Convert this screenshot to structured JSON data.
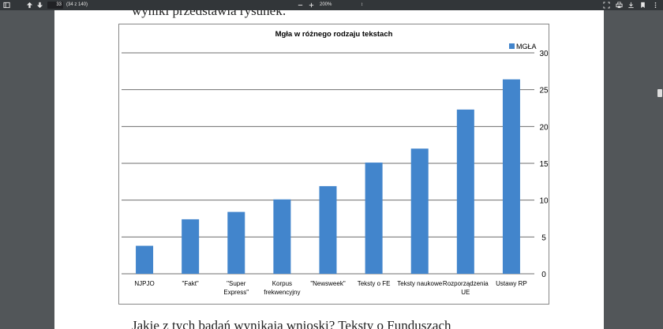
{
  "toolbar": {
    "page_current": "33",
    "page_info": "(34 z 140)",
    "zoom": "200%",
    "zoom_dropdown": "↕"
  },
  "document": {
    "top_text": "wyniki przedstawia rysunek:",
    "bottom_text": "Jakie z tych badań wynikają wnioski? Teksty o Funduszach"
  },
  "colors": {
    "bar": "#4285cc",
    "grid": "#6f6f6f"
  },
  "chart_data": {
    "type": "bar",
    "title": "Mgła w różnego rodzaju tekstach",
    "categories": [
      "NJPJO",
      "\"Fakt\"",
      "\"Super Express\"",
      "Korpus frekwencyjny",
      "\"Newsweek\"",
      "Teksty o FE",
      "Teksty naukowe",
      "Rozporządzenia UE",
      "Ustawy RP"
    ],
    "category_lines": [
      [
        "NJPJO"
      ],
      [
        "\"Fakt\""
      ],
      [
        "\"Super",
        "Express\""
      ],
      [
        "Korpus",
        "frekwencyjny"
      ],
      [
        "\"Newsweek\""
      ],
      [
        "Teksty o FE"
      ],
      [
        "Teksty naukowe"
      ],
      [
        "Rozporządzenia",
        "UE"
      ],
      [
        "Ustawy RP"
      ]
    ],
    "series": [
      {
        "name": "MGŁA",
        "values": [
          3.8,
          7.4,
          8.4,
          10.1,
          11.9,
          15.1,
          17.0,
          22.3,
          26.4
        ]
      }
    ],
    "ylim": [
      0,
      30
    ],
    "yticks": [
      "0",
      "5",
      "10",
      "15",
      "20",
      "25",
      "30"
    ],
    "ytick_values": [
      0,
      5,
      10,
      15,
      20,
      25,
      30
    ],
    "y_axis_side": "right",
    "grid": true,
    "legend_position": "top-right"
  }
}
